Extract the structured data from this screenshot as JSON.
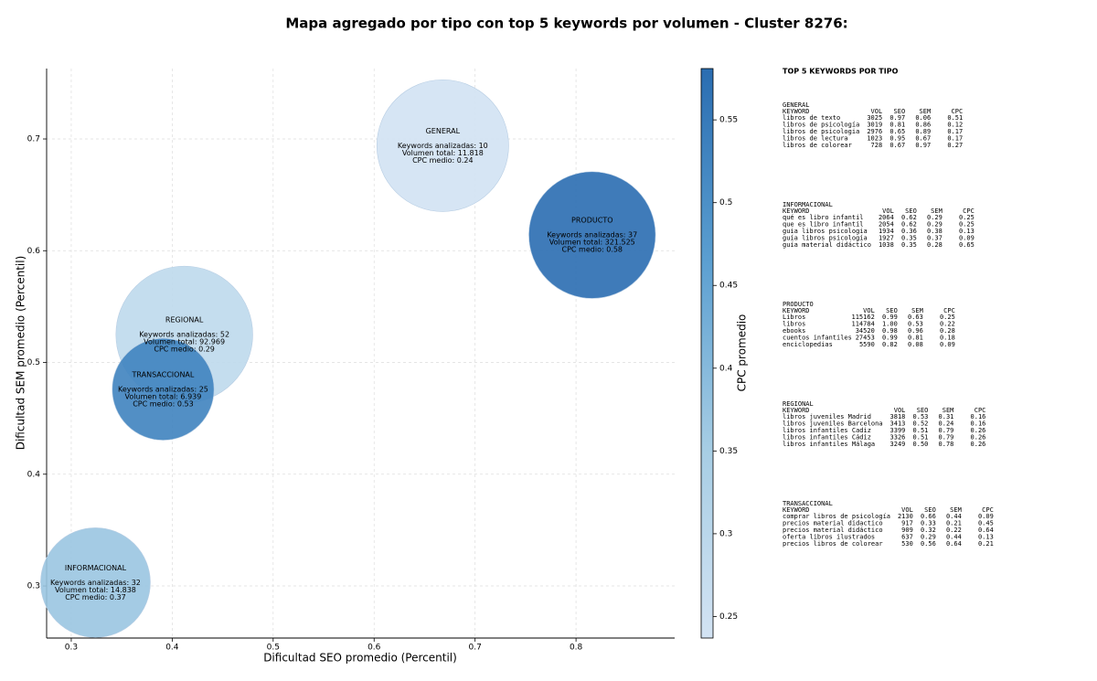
{
  "chart_data": {
    "type": "scatter",
    "title": "Mapa agregado por tipo con top 5 keywords por volumen - Cluster 8276:",
    "xlabel": "Dificultad SEO promedio (Percentil)",
    "ylabel": "Dificultad SEM promedio (Percentil)",
    "categories": [
      "GENERAL",
      "INFORMACIONAL",
      "PRODUCTO",
      "REGIONAL",
      "TRANSACCIONAL"
    ],
    "x": [
      0.668,
      0.324,
      0.816,
      0.412,
      0.391
    ],
    "values": [
      0.694,
      0.303,
      0.614,
      0.525,
      0.476
    ],
    "sizes": [
      52,
      36,
      48,
      56,
      31
    ],
    "cpc": [
      0.24,
      0.37,
      0.58,
      0.29,
      0.53
    ],
    "annotations": [
      [
        "Keywords analizadas: 10",
        "Volumen total: 11.818",
        "CPC medio: 0.24"
      ],
      [
        "Keywords analizadas: 32",
        "Volumen total: 14.838",
        "CPC medio: 0.37"
      ],
      [
        "Keywords analizadas: 37",
        "Volumen total: 321.525",
        "CPC medio: 0.58"
      ],
      [
        "Keywords analizadas: 52",
        "Volumen total: 92.969",
        "CPC medio: 0.29"
      ],
      [
        "Keywords analizadas: 25",
        "Volumen total: 6.939",
        "CPC medio: 0.53"
      ]
    ],
    "xlim": [
      0.2756,
      0.8977
    ],
    "xticks": [
      0.3,
      0.4,
      0.5,
      0.6,
      0.7,
      0.8
    ],
    "ylim": [
      0.2534,
      0.763
    ],
    "yticks": [
      0.3,
      0.4,
      0.5,
      0.6,
      0.7
    ],
    "grid": true,
    "colorbar": {
      "label": "CPC promedio",
      "lim": [
        0.237,
        0.581
      ],
      "ticks": [
        0.25,
        0.3,
        0.35,
        0.4,
        0.45,
        0.5,
        0.55
      ],
      "colormap": [
        "#d3e3f3",
        "#a6cde4",
        "#5a9ed0",
        "#2a6db1"
      ]
    }
  },
  "side_panel": {
    "title": "TOP 5 KEYWORDS POR TIPO",
    "groups": [
      {
        "name": "GENERAL",
        "columns": [
          "KEYWORD",
          "VOL",
          "SEO",
          "SEM",
          "CPC"
        ],
        "rows": [
          [
            "libros de texto",
            "3025",
            "0.97",
            "0.06",
            "0.51"
          ],
          [
            "libros de psicología",
            "3019",
            "0.81",
            "0.86",
            "0.12"
          ],
          [
            "libros de psicologia",
            "2976",
            "0.65",
            "0.89",
            "0.17"
          ],
          [
            "libros de lectura",
            "1023",
            "0.95",
            "0.67",
            "0.17"
          ],
          [
            "libros de colorear",
            "728",
            "0.67",
            "0.97",
            "0.27"
          ]
        ]
      },
      {
        "name": "INFORMACIONAL",
        "columns": [
          "KEYWORD",
          "VOL",
          "SEO",
          "SEM",
          "CPC"
        ],
        "rows": [
          [
            "qué es libro infantil",
            "2064",
            "0.62",
            "0.29",
            "0.25"
          ],
          [
            "que es libro infantil",
            "2054",
            "0.62",
            "0.29",
            "0.25"
          ],
          [
            "guia libros psicologia",
            "1934",
            "0.36",
            "0.38",
            "0.13"
          ],
          [
            "guía libros psicología",
            "1927",
            "0.35",
            "0.37",
            "0.09"
          ],
          [
            "guía material didáctico",
            "1038",
            "0.35",
            "0.28",
            "0.65"
          ]
        ]
      },
      {
        "name": "PRODUCTO",
        "columns": [
          "KEYWORD",
          "VOL",
          "SEO",
          "SEM",
          "CPC"
        ],
        "rows": [
          [
            "Libros",
            "115162",
            "0.99",
            "0.63",
            "0.25"
          ],
          [
            "libros",
            "114784",
            "1.00",
            "0.53",
            "0.22"
          ],
          [
            "ebooks",
            "34520",
            "0.98",
            "0.96",
            "0.28"
          ],
          [
            "cuentos infantiles",
            "27453",
            "0.99",
            "0.81",
            "0.18"
          ],
          [
            "enciclopedias",
            "5590",
            "0.82",
            "0.08",
            "0.09"
          ]
        ]
      },
      {
        "name": "REGIONAL",
        "columns": [
          "KEYWORD",
          "VOL",
          "SEO",
          "SEM",
          "CPC"
        ],
        "rows": [
          [
            "libros juveniles Madrid",
            "3818",
            "0.53",
            "0.31",
            "0.16"
          ],
          [
            "libros juveniles Barcelona",
            "3413",
            "0.52",
            "0.24",
            "0.16"
          ],
          [
            "libros infantiles Cadiz",
            "3399",
            "0.51",
            "0.79",
            "0.26"
          ],
          [
            "libros infantiles Cádiz",
            "3326",
            "0.51",
            "0.79",
            "0.26"
          ],
          [
            "libros infantiles Málaga",
            "3249",
            "0.50",
            "0.78",
            "0.26"
          ]
        ]
      },
      {
        "name": "TRANSACCIONAL",
        "columns": [
          "KEYWORD",
          "VOL",
          "SEO",
          "SEM",
          "CPC"
        ],
        "rows": [
          [
            "comprar libros de psicología",
            "2130",
            "0.66",
            "0.44",
            "0.09"
          ],
          [
            "precios material didactico",
            "917",
            "0.33",
            "0.21",
            "0.45"
          ],
          [
            "precios material didáctico",
            "909",
            "0.32",
            "0.22",
            "0.64"
          ],
          [
            "oferta libros ilustrados",
            "637",
            "0.29",
            "0.44",
            "0.13"
          ],
          [
            "precios libros de colorear",
            "530",
            "0.56",
            "0.64",
            "0.21"
          ]
        ]
      }
    ]
  }
}
